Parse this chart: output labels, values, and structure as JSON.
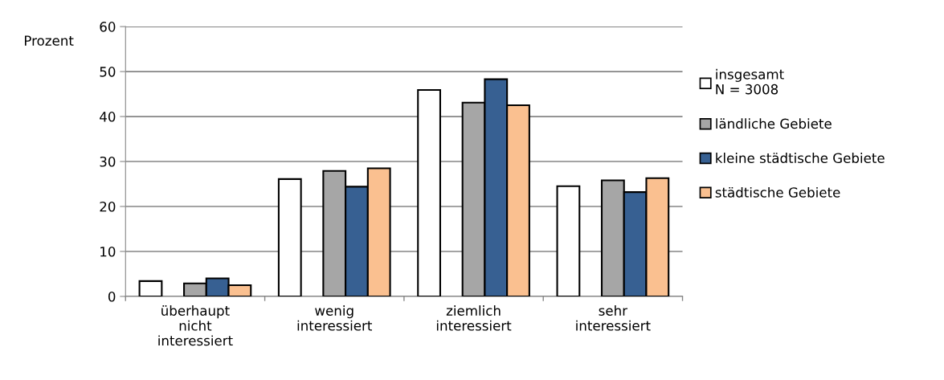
{
  "chart_data": {
    "type": "bar",
    "ylabel": "Prozent",
    "categories": [
      "überhaupt\nnicht\ninteressiert",
      "wenig\ninteressiert",
      "ziemlich\ninteressiert",
      "sehr\ninteressiert"
    ],
    "series": [
      {
        "name": "insgesamt\nN = 3008",
        "color": "#ffffff",
        "values": [
          3.4,
          26.1,
          45.9,
          24.5
        ]
      },
      {
        "name": "ländliche Gebiete",
        "color": "#a6a6a6",
        "values": [
          2.9,
          27.9,
          43.1,
          25.8
        ]
      },
      {
        "name": "kleine städtische Gebiete",
        "color": "#376092",
        "values": [
          4.0,
          24.4,
          48.3,
          23.2
        ]
      },
      {
        "name": "städtische Gebiete",
        "color": "#fac090",
        "values": [
          2.5,
          28.5,
          42.5,
          26.3
        ]
      }
    ],
    "ylim": [
      0,
      60
    ],
    "yticks": [
      0,
      10,
      20,
      30,
      40,
      50,
      60
    ],
    "grid": "y",
    "legend": "right"
  }
}
